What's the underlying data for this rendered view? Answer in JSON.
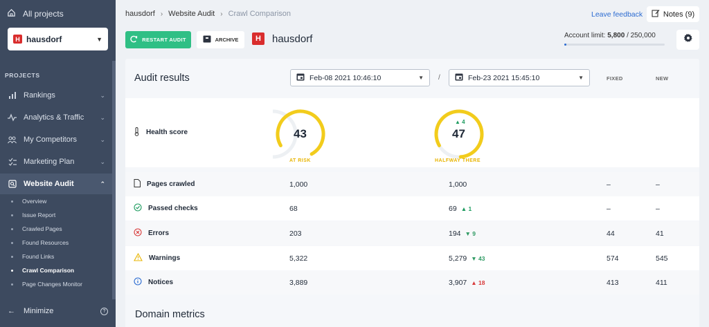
{
  "sidebar": {
    "all_projects": "All projects",
    "project_name": "hausdorf",
    "project_logo_letter": "H",
    "section_label": "PROJECTS",
    "items": [
      {
        "label": "Rankings",
        "icon": "bar-chart-icon"
      },
      {
        "label": "Analytics & Traffic",
        "icon": "pulse-icon"
      },
      {
        "label": "My Competitors",
        "icon": "users-icon"
      },
      {
        "label": "Marketing Plan",
        "icon": "checklist-icon"
      },
      {
        "label": "Website Audit",
        "icon": "audit-icon"
      }
    ],
    "sub_items": [
      {
        "label": "Overview"
      },
      {
        "label": "Issue Report"
      },
      {
        "label": "Crawled Pages"
      },
      {
        "label": "Found Resources"
      },
      {
        "label": "Found Links"
      },
      {
        "label": "Crawl Comparison"
      },
      {
        "label": "Page Changes Monitor"
      }
    ],
    "minimize": "Minimize",
    "help": "?"
  },
  "header": {
    "breadcrumb": [
      "hausdorf",
      "Website Audit",
      "Crawl Comparison"
    ],
    "feedback": "Leave feedback",
    "notes": "Notes (9)",
    "restart": "RESTART AUDIT",
    "archive": "ARCHIVE",
    "project_title": "hausdorf",
    "limit_label": "Account limit:",
    "limit_used": "5,800",
    "limit_sep": "/",
    "limit_total": "250,000",
    "limit_fraction": 0.0232
  },
  "audit": {
    "title": "Audit results",
    "date_a": "Feb-08 2021 10:46:10",
    "date_b": "Feb-23 2021 15:45:10",
    "slash": "/",
    "col_fixed": "FIXED",
    "col_new": "NEW",
    "health": {
      "label": "Health score",
      "a": {
        "value": "43",
        "status": "AT RISK",
        "fraction": 0.43
      },
      "b": {
        "value": "47",
        "status": "HALFWAY THERE",
        "delta": "▲ 4",
        "fraction": 0.47
      }
    },
    "rows": [
      {
        "label": "Pages crawled",
        "a": "1,000",
        "b": "1,000",
        "delta": "",
        "fixed": "–",
        "new": "–"
      },
      {
        "label": "Passed checks",
        "a": "68",
        "b": "69",
        "delta": "▲ 1",
        "fixed": "–",
        "new": "–"
      },
      {
        "label": "Errors",
        "a": "203",
        "b": "194",
        "delta": "▼ 9",
        "fixed": "44",
        "new": "41"
      },
      {
        "label": "Warnings",
        "a": "5,322",
        "b": "5,279",
        "delta": "▼ 43",
        "fixed": "574",
        "new": "545"
      },
      {
        "label": "Notices",
        "a": "3,889",
        "b": "3,907",
        "delta": "▲ 18",
        "fixed": "413",
        "new": "411"
      }
    ],
    "domain_title": "Domain metrics"
  },
  "colors": {
    "sidebar": "#3d4a5f",
    "accent_green": "#2fbf85",
    "gauge_yellow": "#f2cc1c",
    "link_blue": "#2b6bd1",
    "error_red": "#d83a3a"
  }
}
